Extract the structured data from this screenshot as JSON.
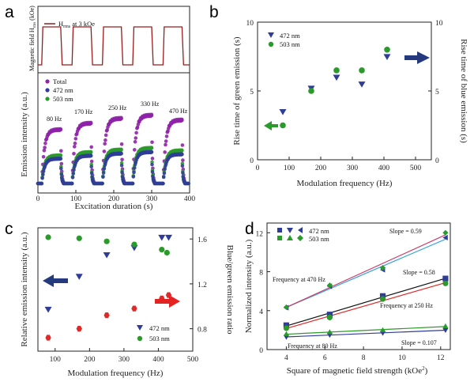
{
  "colors": {
    "magnetic": "#9b1c1c",
    "total": "#8e22a8",
    "nm472": "#2f3d97",
    "nm503": "#2a9a2a",
    "ratio": "#e02a2a",
    "fit_black": "#111111",
    "fit_cyan": "#3aa7d8",
    "arrow_blue": "#25397f",
    "arrow_red": "#e52222"
  },
  "chart_data": [
    {
      "panel": "a",
      "type": "line",
      "top_ylabel": "Magnetic field H_rms (kOe)",
      "top_legend": "H_rms at 3 kOe",
      "xlabel": "Excitation duration (s)",
      "ylabel": "Emission intensity (a.u.)",
      "xlim": [
        0,
        400
      ],
      "xticks": [
        0,
        100,
        200,
        300,
        400
      ],
      "legend": [
        "Total",
        "472 nm",
        "503 nm"
      ],
      "annotations": [
        "80 Hz",
        "170 Hz",
        "250 Hz",
        "330 Hz",
        "470 Hz"
      ],
      "field_on_intervals": [
        [
          10,
          60
        ],
        [
          90,
          140
        ],
        [
          170,
          220
        ],
        [
          250,
          300
        ],
        [
          330,
          380
        ]
      ],
      "series_levels": {
        "Total": 1.0,
        "472 nm": 0.5,
        "503 nm": 0.55
      }
    },
    {
      "panel": "b",
      "type": "scatter",
      "xlabel": "Modulation frequency (Hz)",
      "ylabel_left": "Rise time of green emission (s)",
      "ylabel_right": "Rise time of blue emission (s)",
      "xlim": [
        0,
        550
      ],
      "xticks": [
        0,
        100,
        200,
        300,
        400,
        500
      ],
      "ylim": [
        0,
        10
      ],
      "yticks": [
        0,
        5,
        10
      ],
      "series": [
        {
          "name": "472 nm",
          "x": [
            80,
            170,
            250,
            330,
            410
          ],
          "y": [
            3.5,
            5.2,
            6.0,
            5.5,
            7.5
          ]
        },
        {
          "name": "503 nm",
          "x": [
            80,
            170,
            250,
            330,
            410
          ],
          "y": [
            2.5,
            5.0,
            6.5,
            6.5,
            8.0
          ]
        }
      ]
    },
    {
      "panel": "c",
      "type": "scatter",
      "xlabel": "Modulation frequency (Hz)",
      "ylabel_left": "Relative emission intensity (a.u.)",
      "ylabel_right": "Blue/green emission ratio",
      "xlim": [
        50,
        500
      ],
      "xticks": [
        100,
        200,
        300,
        400,
        500
      ],
      "y_right_lim": [
        0.6,
        1.7
      ],
      "y_right_ticks": [
        0.8,
        1.2,
        1.6
      ],
      "series": [
        {
          "name": "472 nm",
          "x": [
            80,
            170,
            250,
            330,
            410,
            430
          ],
          "y": [
            0.3,
            0.62,
            0.83,
            0.9,
            1.0,
            1.0
          ]
        },
        {
          "name": "503 nm",
          "x": [
            80,
            170,
            250,
            330,
            410,
            425
          ],
          "y": [
            1.0,
            0.99,
            0.96,
            0.93,
            0.88,
            0.85
          ]
        },
        {
          "name": "Blue/green ratio",
          "x": [
            80,
            170,
            250,
            330,
            410,
            430
          ],
          "y": [
            0.72,
            0.8,
            0.92,
            0.98,
            1.07,
            1.1
          ]
        }
      ]
    },
    {
      "panel": "d",
      "type": "scatter",
      "xlabel": "Square of magnetic field strength (kOe²)",
      "ylabel": "Normalized intensity (a.u.)",
      "xlim": [
        3,
        12.5
      ],
      "xticks": [
        4,
        6,
        8,
        10,
        12
      ],
      "ylim": [
        0,
        13
      ],
      "yticks": [
        0,
        4,
        8,
        12
      ],
      "x_values": [
        4,
        6.25,
        9,
        12.25
      ],
      "series": [
        {
          "name": "472 nm (470 Hz)",
          "y": [
            4.3,
            6.5,
            8.2,
            11.5
          ]
        },
        {
          "name": "503 nm (470 Hz)",
          "y": [
            4.35,
            6.6,
            8.4,
            12.0
          ]
        },
        {
          "name": "472 nm (250 Hz)",
          "y": [
            2.5,
            3.6,
            5.5,
            7.3
          ]
        },
        {
          "name": "503 nm (250 Hz)",
          "y": [
            2.2,
            3.3,
            5.2,
            6.8
          ]
        },
        {
          "name": "472 nm (80 Hz)",
          "y": [
            1.3,
            1.5,
            1.7,
            2.0
          ]
        },
        {
          "name": "503 nm (80 Hz)",
          "y": [
            1.6,
            1.8,
            2.0,
            2.4
          ]
        }
      ],
      "legend": [
        "472 nm",
        "503 nm"
      ],
      "annotations": [
        "Frequency at 470 Hz",
        "Frequency at 250 Hz",
        "Frequency at 80 Hz",
        "Slope = 0.59",
        "Slope = 0.58",
        "Slope = 0.107"
      ]
    }
  ],
  "panels": {
    "a": {
      "letter": "a",
      "top_legend": "H",
      "top_legend_sub": "rms",
      "top_legend_rest": " at 3 kOe",
      "top_ylabel": "Magnetic field H",
      "top_ylabel_sub": "rms",
      "top_ylabel_rest": " (kOe)",
      "ylabel": "Emission intensity (a.u.)",
      "xlabel": "Excitation duration (s)",
      "xticks": [
        "0",
        "100",
        "200",
        "300",
        "400"
      ],
      "legend": [
        "Total",
        "472 nm",
        "503 nm"
      ],
      "freq_labels": [
        "80 Hz",
        "170 Hz",
        "250 Hz",
        "330 Hz",
        "470 Hz"
      ]
    },
    "b": {
      "letter": "b",
      "ylabel_left": "Rise time of green emission (s)",
      "ylabel_right": "Rise time of blue emission (s)",
      "xlabel": "Modulation frequency (Hz)",
      "xticks": [
        "0",
        "100",
        "200",
        "300",
        "400",
        "500"
      ],
      "yticks": [
        "0",
        "5",
        "10"
      ],
      "legend": [
        "472 nm",
        "503 nm"
      ]
    },
    "c": {
      "letter": "c",
      "ylabel_left": "Relative emission intensity (a.u.)",
      "ylabel_right": "Blue/green emission ratio",
      "xlabel": "Modulation frequency (Hz)",
      "xticks": [
        "100",
        "200",
        "300",
        "400",
        "500"
      ],
      "yticks_right": [
        "0.8",
        "1.2",
        "1.6"
      ],
      "legend": [
        "472 nm",
        "503 nm"
      ]
    },
    "d": {
      "letter": "d",
      "ylabel": "Normalized intensity (a.u.)",
      "xlabel": "Square of magnetic field strength (kOe",
      "xlabel_sup": "2",
      "xlabel_end": ")",
      "xticks": [
        "4",
        "6",
        "8",
        "10",
        "12"
      ],
      "yticks": [
        "0",
        "4",
        "8",
        "12"
      ],
      "legend": [
        "472 nm",
        "503 nm"
      ],
      "freq_labels": [
        "Frequency at 470 Hz",
        "Frequency at 250 Hz",
        "Frequency at 80 Hz"
      ],
      "slopes": [
        "Slope = 0.59",
        "Slope = 0.58",
        "Slope = 0.107"
      ]
    }
  }
}
